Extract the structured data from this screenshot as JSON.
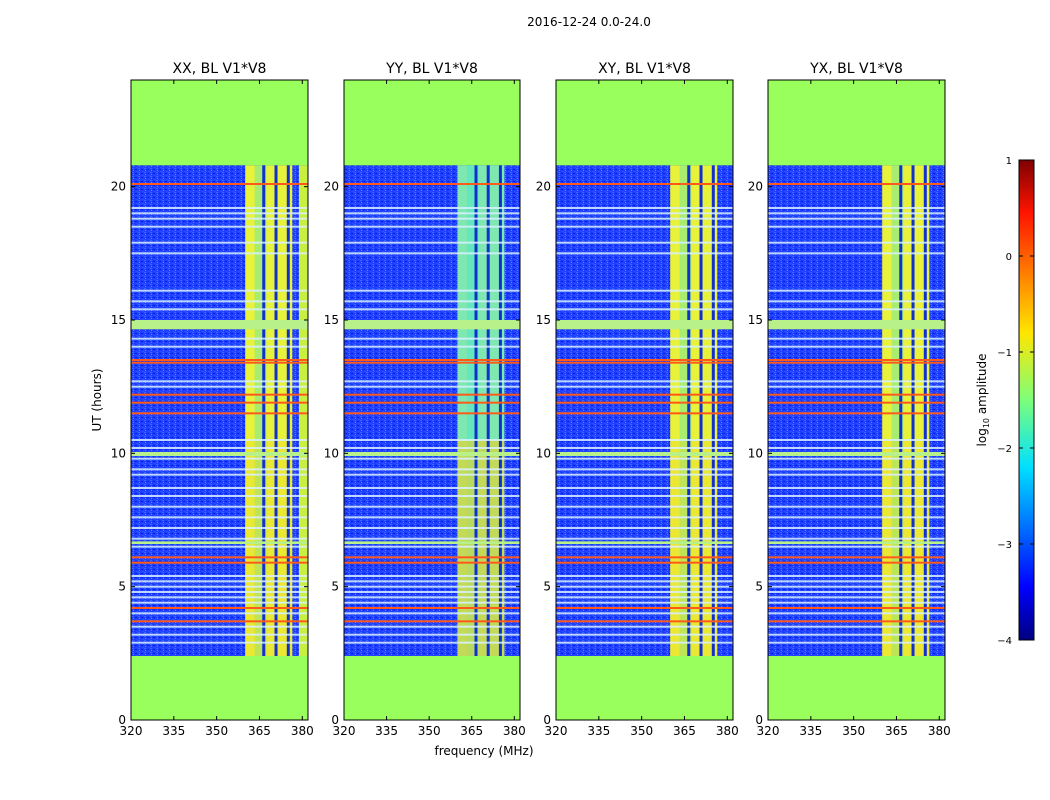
{
  "figure_title": "2016-12-24 0.0-24.0",
  "chart_data": [
    {
      "type": "heatmap",
      "title": "XX, BL V1*V8",
      "xlabel": "",
      "ylabel": "UT (hours)",
      "xlim": [
        320,
        382
      ],
      "ylim": [
        0,
        24
      ],
      "xticks": [
        320,
        335,
        350,
        365,
        380
      ],
      "yticks": [
        0,
        5,
        10,
        15,
        20
      ],
      "colorbar_ticks": [
        -4,
        -3,
        -2,
        -1,
        0,
        1
      ],
      "background_value": -1.2,
      "data_time_range": [
        2.4,
        20.8
      ],
      "bright_band_MHz": [
        360,
        376.5
      ],
      "dropout_channels_MHz": [
        366.5,
        370.8,
        375.1
      ],
      "edge_bright_MHz": [
        378.8,
        382
      ]
    },
    {
      "type": "heatmap",
      "title": "YY, BL V1*V8",
      "xlabel": "frequency (MHz)",
      "ylabel": "",
      "xlim": [
        320,
        382
      ],
      "ylim": [
        0,
        24
      ],
      "xticks": [
        320,
        335,
        350,
        365,
        380
      ],
      "yticks": [
        0,
        5,
        10,
        15,
        20
      ],
      "background_value": -1.2,
      "data_time_range": [
        2.4,
        20.8
      ],
      "bright_band_MHz": [
        360,
        376.5
      ],
      "dropout_channels_MHz": [
        366.5,
        370.8,
        375.1
      ]
    },
    {
      "type": "heatmap",
      "title": "XY, BL V1*V8",
      "xlabel": "",
      "ylabel": "",
      "xlim": [
        320,
        382
      ],
      "ylim": [
        0,
        24
      ],
      "xticks": [
        320,
        335,
        350,
        365,
        380
      ],
      "yticks": [
        0,
        5,
        10,
        15,
        20
      ],
      "background_value": -1.2,
      "data_time_range": [
        2.4,
        20.8
      ],
      "bright_band_MHz": [
        360,
        376.5
      ],
      "dropout_channels_MHz": [
        366.5,
        370.8,
        375.1
      ]
    },
    {
      "type": "heatmap",
      "title": "YX, BL V1*V8",
      "xlabel": "",
      "ylabel": "",
      "xlim": [
        320,
        382
      ],
      "ylim": [
        0,
        24
      ],
      "xticks": [
        320,
        335,
        350,
        365,
        380
      ],
      "yticks": [
        0,
        5,
        10,
        15,
        20
      ],
      "background_value": -1.2,
      "data_time_range": [
        2.4,
        20.8
      ],
      "bright_band_MHz": [
        360,
        376.5
      ],
      "dropout_channels_MHz": [
        366.5,
        370.8,
        375.1
      ]
    }
  ],
  "colorbar": {
    "label": "log",
    "label_sub": "10",
    "label_rest": " amplitude",
    "range": [
      -4,
      1
    ],
    "tick_labels": [
      "1",
      "0",
      "−1",
      "−2",
      "−3",
      "−4"
    ],
    "tick_values": [
      1,
      0,
      -1,
      -2,
      -3,
      -4
    ]
  },
  "flagged_rows_hours": {
    "orange": [
      20.1,
      13.5,
      13.4,
      12.2,
      11.9,
      11.5,
      6.1,
      5.9,
      4.2,
      3.7
    ],
    "light": [
      19.2,
      19.0,
      18.8,
      18.5,
      17.9,
      17.5,
      16.1,
      15.7,
      15.4,
      14.3,
      14.0,
      12.7,
      12.5,
      10.5,
      10.2,
      9.8,
      9.4,
      9.2,
      8.7,
      8.4,
      8.0,
      7.6,
      7.2,
      6.8,
      6.5,
      5.4,
      5.2,
      5.0,
      4.8,
      4.6,
      4.4,
      4.0,
      3.5,
      3.2,
      2.9
    ],
    "green_bands": [
      [
        14.65,
        15.0
      ],
      [
        9.9,
        10.05
      ],
      [
        6.6,
        6.7
      ]
    ]
  },
  "colors": {
    "flag_green": "#99ff5c",
    "low": "#1a3cff",
    "bright": "#e8f23a",
    "orange_line": "#ff5a1a",
    "light_line": "#d8f0ff",
    "cyan": "#33e6d8"
  }
}
